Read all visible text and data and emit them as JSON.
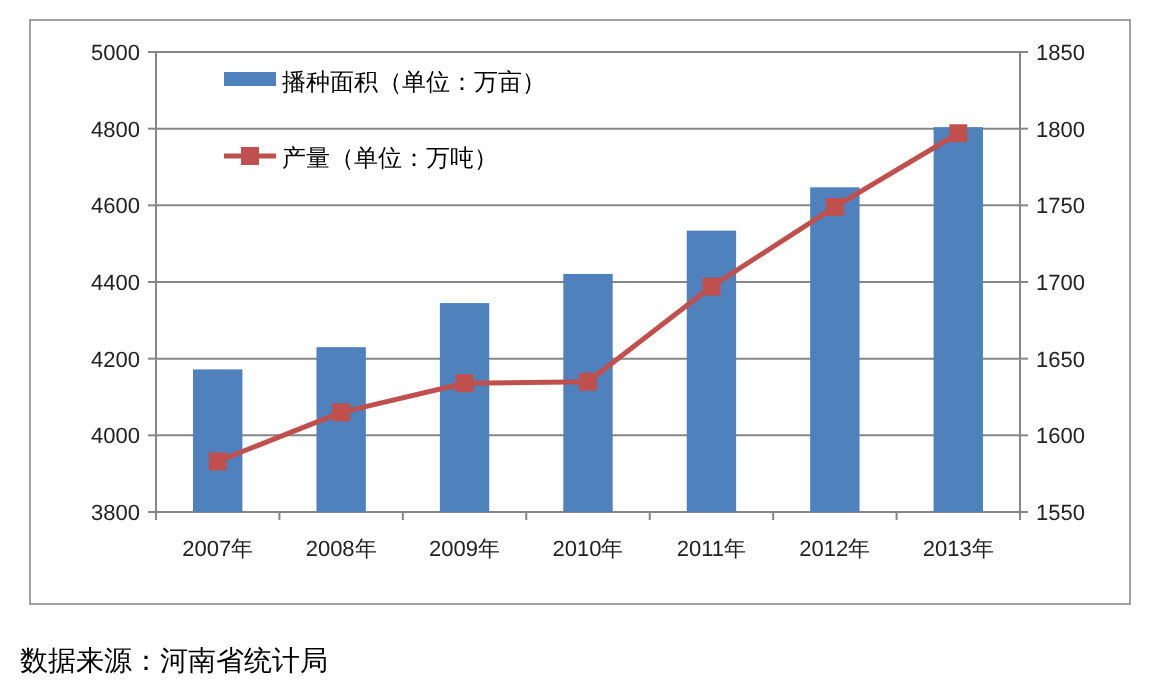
{
  "chart_data": {
    "type": "bar",
    "categories": [
      "2007年",
      "2008年",
      "2009年",
      "2010年",
      "2011年",
      "2012年",
      "2013年"
    ],
    "series": [
      {
        "name": "播种面积（单位：万亩）",
        "color": "#4f81bd",
        "values": [
          4172,
          4230,
          4345,
          4421,
          4534,
          4647,
          4804
        ]
      },
      {
        "name": "产量（单位：万吨）",
        "type": "line",
        "axis": "y2",
        "color": "#c0504d",
        "marker": "square",
        "values": [
          1583,
          1615,
          1634,
          1635,
          1697,
          1749,
          1797
        ]
      }
    ],
    "ylim": [
      3800,
      5000
    ],
    "yticks": [
      3800,
      4000,
      4200,
      4400,
      4600,
      4800,
      5000
    ],
    "y2lim": [
      1550,
      1850
    ],
    "y2ticks": [
      1550,
      1600,
      1650,
      1700,
      1750,
      1800,
      1850
    ],
    "grid": "y",
    "legend": "top left",
    "annotations": [
      "数据来源：河南省统计局"
    ]
  }
}
